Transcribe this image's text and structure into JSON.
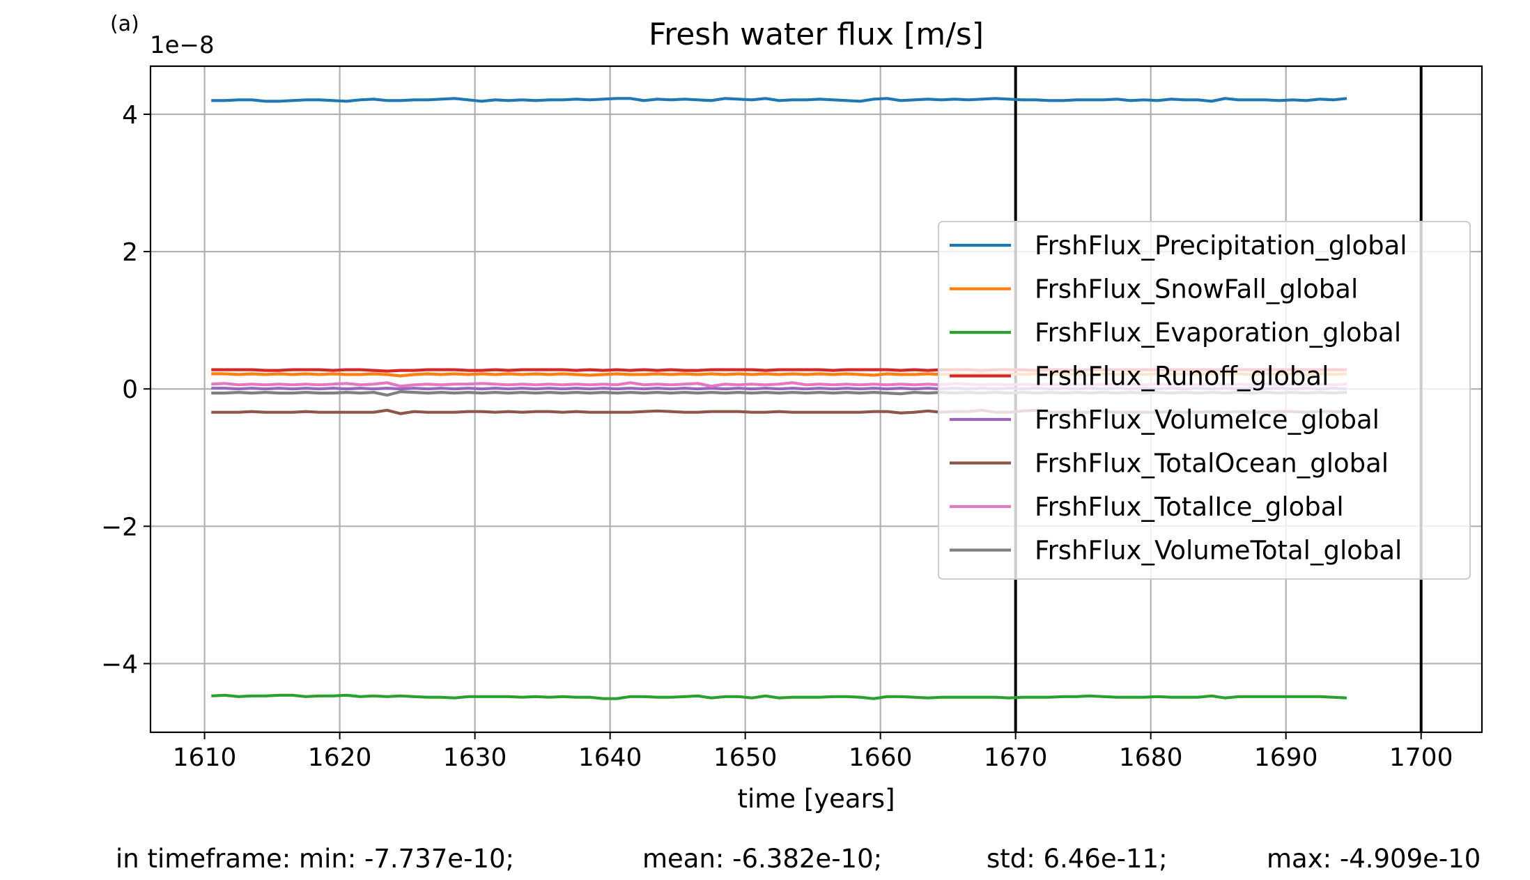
{
  "panel_label": "(a)",
  "offset_label": "1e−8",
  "stats": {
    "min": "in timeframe: min: -7.737e-10;",
    "mean": "mean: -6.382e-10;",
    "std": "std: 6.46e-11;",
    "max": "max: -4.909e-10"
  },
  "chart_data": {
    "type": "line",
    "title": "Fresh water flux [m/s]",
    "xlabel": "time [years]",
    "ylabel": "",
    "xlim": [
      1606,
      1704.5
    ],
    "ylim": [
      -5.0,
      4.7
    ],
    "y_scale_multiplier": "1e-8",
    "x_ticks": [
      1610,
      1620,
      1630,
      1640,
      1650,
      1660,
      1670,
      1680,
      1690,
      1700
    ],
    "y_ticks": [
      -4,
      -2,
      0,
      2,
      4
    ],
    "y_tick_labels": [
      "−4",
      "−2",
      "0",
      "2",
      "4"
    ],
    "grid": true,
    "legend_position": "center-right",
    "x_start": 1610.5,
    "x_step": 1,
    "vertical_lines": [
      1670,
      1700
    ],
    "series": [
      {
        "name": "FrshFlux_Precipitation_global",
        "color": "#1f77b4",
        "values": [
          4.2,
          4.2,
          4.21,
          4.21,
          4.19,
          4.19,
          4.2,
          4.21,
          4.21,
          4.2,
          4.19,
          4.21,
          4.22,
          4.2,
          4.2,
          4.21,
          4.21,
          4.22,
          4.23,
          4.21,
          4.19,
          4.21,
          4.2,
          4.21,
          4.2,
          4.21,
          4.21,
          4.22,
          4.21,
          4.22,
          4.23,
          4.23,
          4.2,
          4.22,
          4.21,
          4.22,
          4.21,
          4.2,
          4.23,
          4.22,
          4.21,
          4.23,
          4.2,
          4.21,
          4.21,
          4.22,
          4.21,
          4.2,
          4.19,
          4.22,
          4.23,
          4.2,
          4.21,
          4.22,
          4.21,
          4.22,
          4.21,
          4.22,
          4.23,
          4.22,
          4.21,
          4.21,
          4.2,
          4.2,
          4.21,
          4.21,
          4.21,
          4.22,
          4.2,
          4.21,
          4.2,
          4.22,
          4.21,
          4.21,
          4.19,
          4.23,
          4.21,
          4.21,
          4.21,
          4.2,
          4.21,
          4.2,
          4.22,
          4.21,
          4.23
        ]
      },
      {
        "name": "FrshFlux_SnowFall_global",
        "color": "#ff7f0e",
        "values": [
          0.22,
          0.22,
          0.21,
          0.22,
          0.21,
          0.22,
          0.21,
          0.22,
          0.21,
          0.22,
          0.21,
          0.21,
          0.22,
          0.21,
          0.19,
          0.21,
          0.22,
          0.21,
          0.22,
          0.21,
          0.22,
          0.21,
          0.22,
          0.21,
          0.22,
          0.21,
          0.22,
          0.21,
          0.2,
          0.21,
          0.22,
          0.21,
          0.21,
          0.22,
          0.21,
          0.22,
          0.21,
          0.22,
          0.21,
          0.22,
          0.21,
          0.22,
          0.21,
          0.22,
          0.21,
          0.22,
          0.21,
          0.22,
          0.21,
          0.2,
          0.22,
          0.21,
          0.21,
          0.22,
          0.21,
          0.22,
          0.21,
          0.22,
          0.21,
          0.22,
          0.21,
          0.22,
          0.21,
          0.22,
          0.21,
          0.21,
          0.22,
          0.21,
          0.22,
          0.21,
          0.22,
          0.21,
          0.22,
          0.21,
          0.22,
          0.21,
          0.22,
          0.21,
          0.22,
          0.21,
          0.22,
          0.21,
          0.22,
          0.21,
          0.22
        ]
      },
      {
        "name": "FrshFlux_Evaporation_global",
        "color": "#2ca02c",
        "values": [
          -4.47,
          -4.46,
          -4.48,
          -4.47,
          -4.47,
          -4.46,
          -4.46,
          -4.48,
          -4.47,
          -4.47,
          -4.46,
          -4.48,
          -4.47,
          -4.48,
          -4.47,
          -4.48,
          -4.49,
          -4.49,
          -4.5,
          -4.48,
          -4.48,
          -4.48,
          -4.48,
          -4.49,
          -4.48,
          -4.49,
          -4.48,
          -4.49,
          -4.49,
          -4.51,
          -4.51,
          -4.48,
          -4.48,
          -4.49,
          -4.49,
          -4.48,
          -4.47,
          -4.5,
          -4.48,
          -4.48,
          -4.5,
          -4.47,
          -4.5,
          -4.49,
          -4.49,
          -4.49,
          -4.48,
          -4.48,
          -4.49,
          -4.51,
          -4.48,
          -4.48,
          -4.49,
          -4.5,
          -4.49,
          -4.49,
          -4.49,
          -4.49,
          -4.49,
          -4.5,
          -4.49,
          -4.49,
          -4.49,
          -4.48,
          -4.48,
          -4.47,
          -4.48,
          -4.49,
          -4.49,
          -4.49,
          -4.48,
          -4.49,
          -4.49,
          -4.49,
          -4.47,
          -4.5,
          -4.48,
          -4.48,
          -4.48,
          -4.48,
          -4.48,
          -4.48,
          -4.48,
          -4.49,
          -4.5
        ]
      },
      {
        "name": "FrshFlux_Runoff_global",
        "color": "#d62728",
        "values": [
          0.28,
          0.28,
          0.28,
          0.28,
          0.27,
          0.27,
          0.28,
          0.28,
          0.28,
          0.27,
          0.28,
          0.28,
          0.27,
          0.26,
          0.27,
          0.27,
          0.28,
          0.28,
          0.28,
          0.27,
          0.27,
          0.28,
          0.27,
          0.28,
          0.28,
          0.28,
          0.28,
          0.27,
          0.28,
          0.27,
          0.28,
          0.27,
          0.28,
          0.27,
          0.28,
          0.27,
          0.27,
          0.28,
          0.28,
          0.28,
          0.28,
          0.27,
          0.28,
          0.28,
          0.28,
          0.28,
          0.27,
          0.28,
          0.28,
          0.28,
          0.28,
          0.27,
          0.28,
          0.27,
          0.28,
          0.28,
          0.28,
          0.27,
          0.28,
          0.28,
          0.28,
          0.27,
          0.28,
          0.28,
          0.27,
          0.28,
          0.28,
          0.28,
          0.28,
          0.28,
          0.28,
          0.28,
          0.28,
          0.28,
          0.28,
          0.28,
          0.28,
          0.28,
          0.28,
          0.28,
          0.28,
          0.28,
          0.28,
          0.28,
          0.28
        ]
      },
      {
        "name": "FrshFlux_VolumeIce_global",
        "color": "#9467bd",
        "values": [
          0.01,
          0.01,
          0.0,
          0.01,
          0.0,
          0.01,
          0.0,
          0.01,
          0.0,
          0.01,
          0.0,
          0.01,
          0.0,
          0.01,
          0.0,
          0.01,
          0.0,
          0.01,
          0.0,
          0.01,
          0.0,
          0.01,
          0.0,
          0.01,
          0.0,
          0.01,
          0.0,
          0.01,
          0.0,
          0.01,
          0.0,
          0.01,
          0.0,
          0.01,
          0.0,
          0.01,
          0.0,
          0.01,
          0.0,
          0.01,
          0.0,
          0.01,
          0.0,
          0.01,
          0.0,
          0.01,
          0.0,
          0.01,
          0.0,
          0.01,
          0.0,
          0.01,
          0.0,
          0.01,
          0.0,
          0.01,
          0.0,
          0.01,
          0.0,
          0.01,
          0.0,
          0.01,
          0.0,
          0.01,
          0.0,
          0.01,
          0.0,
          0.01,
          0.0,
          0.01,
          0.0,
          0.01,
          0.0,
          0.01,
          0.0,
          0.01,
          0.0,
          0.01,
          0.0,
          0.01,
          0.0,
          0.01,
          0.0,
          0.01,
          0.0
        ]
      },
      {
        "name": "FrshFlux_TotalOcean_global",
        "color": "#8c564b",
        "values": [
          -0.34,
          -0.34,
          -0.34,
          -0.33,
          -0.34,
          -0.34,
          -0.34,
          -0.33,
          -0.34,
          -0.34,
          -0.34,
          -0.34,
          -0.34,
          -0.31,
          -0.36,
          -0.33,
          -0.34,
          -0.34,
          -0.34,
          -0.33,
          -0.33,
          -0.34,
          -0.33,
          -0.34,
          -0.33,
          -0.33,
          -0.34,
          -0.33,
          -0.34,
          -0.34,
          -0.34,
          -0.34,
          -0.33,
          -0.32,
          -0.33,
          -0.34,
          -0.34,
          -0.33,
          -0.33,
          -0.33,
          -0.34,
          -0.34,
          -0.33,
          -0.34,
          -0.34,
          -0.34,
          -0.34,
          -0.34,
          -0.34,
          -0.33,
          -0.33,
          -0.35,
          -0.34,
          -0.32,
          -0.34,
          -0.33,
          -0.33,
          -0.31,
          -0.34,
          -0.34,
          -0.32,
          -0.31,
          -0.34,
          -0.34,
          -0.34,
          -0.34,
          -0.33,
          -0.34,
          -0.34,
          -0.34,
          -0.34,
          -0.33,
          -0.34,
          -0.34,
          -0.33,
          -0.34,
          -0.33,
          -0.34,
          -0.34,
          -0.33,
          -0.33,
          -0.34,
          -0.33,
          -0.33,
          -0.34
        ]
      },
      {
        "name": "FrshFlux_TotalIce_global",
        "color": "#e377c2",
        "values": [
          0.07,
          0.08,
          0.06,
          0.07,
          0.06,
          0.07,
          0.06,
          0.07,
          0.06,
          0.07,
          0.08,
          0.06,
          0.07,
          0.09,
          0.04,
          0.06,
          0.07,
          0.06,
          0.07,
          0.07,
          0.08,
          0.07,
          0.06,
          0.07,
          0.06,
          0.07,
          0.06,
          0.07,
          0.06,
          0.07,
          0.06,
          0.09,
          0.06,
          0.07,
          0.06,
          0.07,
          0.08,
          0.04,
          0.07,
          0.06,
          0.07,
          0.06,
          0.07,
          0.09,
          0.06,
          0.07,
          0.06,
          0.07,
          0.06,
          0.07,
          0.06,
          0.07,
          0.06,
          0.07,
          0.06,
          0.08,
          0.07,
          0.06,
          0.07,
          0.06,
          0.07,
          0.06,
          0.07,
          0.06,
          0.07,
          0.06,
          0.07,
          0.06,
          0.07,
          0.06,
          0.07,
          0.06,
          0.07,
          0.06,
          0.07,
          0.06,
          0.07,
          0.06,
          0.07,
          0.06,
          0.07,
          0.06,
          0.07,
          0.06,
          0.07
        ]
      },
      {
        "name": "FrshFlux_VolumeTotal_global",
        "color": "#7f7f7f",
        "values": [
          -0.06,
          -0.06,
          -0.05,
          -0.06,
          -0.05,
          -0.06,
          -0.06,
          -0.05,
          -0.06,
          -0.06,
          -0.05,
          -0.06,
          -0.05,
          -0.09,
          -0.04,
          -0.05,
          -0.06,
          -0.05,
          -0.06,
          -0.05,
          -0.06,
          -0.05,
          -0.06,
          -0.05,
          -0.06,
          -0.05,
          -0.06,
          -0.05,
          -0.06,
          -0.05,
          -0.06,
          -0.05,
          -0.06,
          -0.05,
          -0.06,
          -0.05,
          -0.06,
          -0.05,
          -0.06,
          -0.05,
          -0.06,
          -0.05,
          -0.06,
          -0.05,
          -0.06,
          -0.05,
          -0.06,
          -0.05,
          -0.06,
          -0.05,
          -0.06,
          -0.07,
          -0.05,
          -0.06,
          -0.05,
          -0.06,
          -0.05,
          -0.06,
          -0.05,
          -0.06,
          -0.05,
          -0.06,
          -0.05,
          -0.06,
          -0.05,
          -0.06,
          -0.05,
          -0.06,
          -0.05,
          -0.06,
          -0.05,
          -0.06,
          -0.05,
          -0.06,
          -0.05,
          -0.06,
          -0.05,
          -0.06,
          -0.05,
          -0.06,
          -0.05,
          -0.06,
          -0.05,
          -0.06,
          -0.05
        ]
      }
    ]
  }
}
